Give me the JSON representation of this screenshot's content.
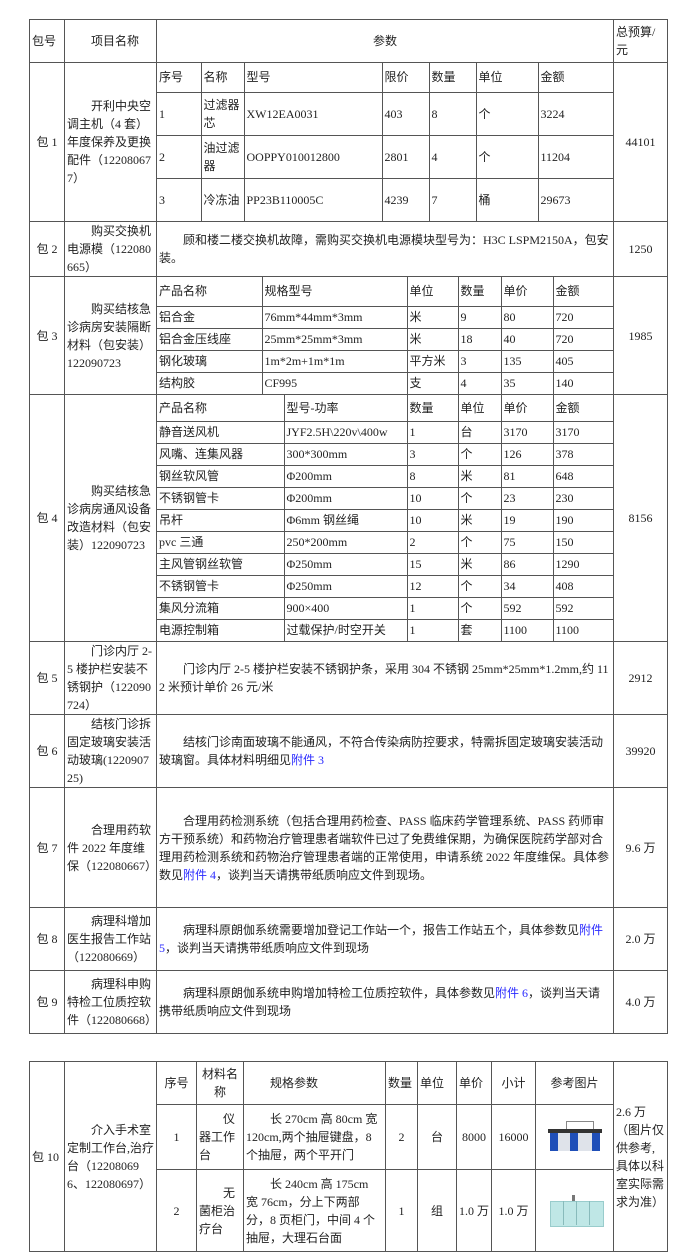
{
  "header": {
    "pkg": "包号",
    "name": "项目名称",
    "params": "参数",
    "budget": "总预算/元"
  },
  "pkg1": {
    "id": "包 1",
    "name": "开利中央空调主机（4 套）年度保养及更换配件（122080677）",
    "budget": "44101",
    "columns": [
      "序号",
      "名称",
      "型号",
      "限价",
      "数量",
      "单位",
      "金额"
    ],
    "rows": [
      [
        "1",
        "过滤器芯",
        "XW12EA0031",
        "403",
        "8",
        "个",
        "3224"
      ],
      [
        "2",
        "油过滤器",
        "OOPPY010012800",
        "2801",
        "4",
        "个",
        "11204"
      ],
      [
        "3",
        "冷冻油",
        "PP23B110005C",
        "4239",
        "7",
        "桶",
        "29673"
      ]
    ]
  },
  "pkg2": {
    "id": "包 2",
    "name": "购买交换机电源模（122080665）",
    "desc": "顾和楼二楼交换机故障，需购买交换机电源模块型号为：H3C LSPM2150A，包安装。",
    "budget": "1250"
  },
  "pkg3": {
    "id": "包 3",
    "name": "购买结核急诊病房安装隔断材料（包安装）122090723",
    "budget": "1985",
    "columns": [
      "产品名称",
      "规格型号",
      "单位",
      "数量",
      "单价",
      "金额"
    ],
    "rows": [
      [
        "铝合金",
        "76mm*44mm*3mm",
        "米",
        "9",
        "80",
        "720"
      ],
      [
        "铝合金压线座",
        "25mm*25mm*3mm",
        "米",
        "18",
        "40",
        "720"
      ],
      [
        "钢化玻璃",
        "1m*2m+1m*1m",
        "平方米",
        "3",
        "135",
        "405"
      ],
      [
        "结构胶",
        "CF995",
        "支",
        "4",
        "35",
        "140"
      ]
    ]
  },
  "pkg4": {
    "id": "包 4",
    "name": "购买结核急诊病房通风设备改造材料（包安装）122090723",
    "budget": "8156",
    "columns": [
      "产品名称",
      "型号-功率",
      "数量",
      "单位",
      "单价",
      "金额"
    ],
    "rows": [
      [
        "静音送风机",
        "JYF2.5H\\220v\\400w",
        "1",
        "台",
        "3170",
        "3170"
      ],
      [
        "风嘴、连集风器",
        "300*300mm",
        "3",
        "个",
        "126",
        "378"
      ],
      [
        "钢丝软风管",
        "Φ200mm",
        "8",
        "米",
        "81",
        "648"
      ],
      [
        "不锈钢管卡",
        "Φ200mm",
        "10",
        "个",
        "23",
        "230"
      ],
      [
        "吊杆",
        "Φ6mm 钢丝绳",
        "10",
        "米",
        "19",
        "190"
      ],
      [
        "pvc 三通",
        "250*200mm",
        "2",
        "个",
        "75",
        "150"
      ],
      [
        "主风管钢丝软管",
        "Φ250mm",
        "15",
        "米",
        "86",
        "1290"
      ],
      [
        "不锈钢管卡",
        "Φ250mm",
        "12",
        "个",
        "34",
        "408"
      ],
      [
        "集风分流箱",
        "900×400",
        "1",
        "个",
        "592",
        "592"
      ],
      [
        "电源控制箱",
        "过载保护/时空开关",
        "1",
        "套",
        "1100",
        "1100"
      ]
    ]
  },
  "pkg5": {
    "id": "包 5",
    "name": "门诊内厅 2-5 楼护栏安装不锈钢护（122090724）",
    "desc": "门诊内厅 2-5 楼护栏安装不锈钢护条，采用 304 不锈钢 25mm*25mm*1.2mm,约 112 米预计单价 26 元/米",
    "budget": "2912"
  },
  "pkg6": {
    "id": "包 6",
    "name": "结核门诊拆固定玻璃安装活动玻璃(122090725)",
    "desc": "结核门诊南面玻璃不能通风，不符合传染病防控要求，特需拆固定玻璃安装活动玻璃窗。具体材料明细见",
    "link": "附件 3",
    "budget": "39920"
  },
  "pkg7": {
    "id": "包 7",
    "name": "合理用药软件 2022 年度维保（122080667）",
    "desc": "合理用药检测系统（包括合理用药检查、PASS 临床药学管理系统、PASS 药师审方干预系统）和药物治疗管理患者端软件已过了免费维保期，为确保医院药学部对合理用药检测系统和药物治疗管理患者端的正常使用，申请系统 2022 年度维保。具体参数见",
    "link": "附件 4",
    "desc_end": "，谈判当天请携带纸质响应文件到现场。",
    "budget": "9.6 万"
  },
  "pkg8": {
    "id": "包 8",
    "name": "病理科增加医生报告工作站（122080669）",
    "desc": "病理科原朗伽系统需要增加登记工作站一个，报告工作站五个，具体参数见",
    "link": "附件 5",
    "desc_end": "，谈判当天请携带纸质响应文件到现场",
    "budget": "2.0 万"
  },
  "pkg9": {
    "id": "包 9",
    "name": "病理科申购特检工位质控软件（122080668）",
    "desc": "病理科原朗伽系统申购增加特检工位质控软件，具体参数见",
    "link": "附件 6",
    "desc_end": "，谈判当天请携带纸质响应文件到现场",
    "budget": "4.0 万"
  },
  "pkg10": {
    "id": "包 10",
    "name": "介入手术室定制工作台,治疗台（122080696、122080697）",
    "budget": "2.6 万（图片仅供参考,具体以科室实际需求为准）",
    "columns": [
      "序号",
      "材料名称",
      "规格参数",
      "数量",
      "单位",
      "单价",
      "小计",
      "参考图片"
    ],
    "rows": [
      {
        "no": "1",
        "name": "仪器工作台",
        "spec": "长 270cm 高 80cm 宽 120cm,两个抽屉键盘，8 个抽屉，两个平开门",
        "qty": "2",
        "unit": "台",
        "price": "8000",
        "subtotal": "16000",
        "image": "workbench-image"
      },
      {
        "no": "2",
        "name": "无菌柜治疗台",
        "spec": "长 240cm 高 175cm 宽 76cm，分上下两部分，8 页柜门，中间 4 个抽屉，大理石台面",
        "qty": "1",
        "unit": "组",
        "price": "1.0 万",
        "subtotal": "1.0 万",
        "image": "cabinet-image"
      }
    ]
  },
  "colors": {
    "link": "#2b2bff",
    "border": "#555555"
  }
}
